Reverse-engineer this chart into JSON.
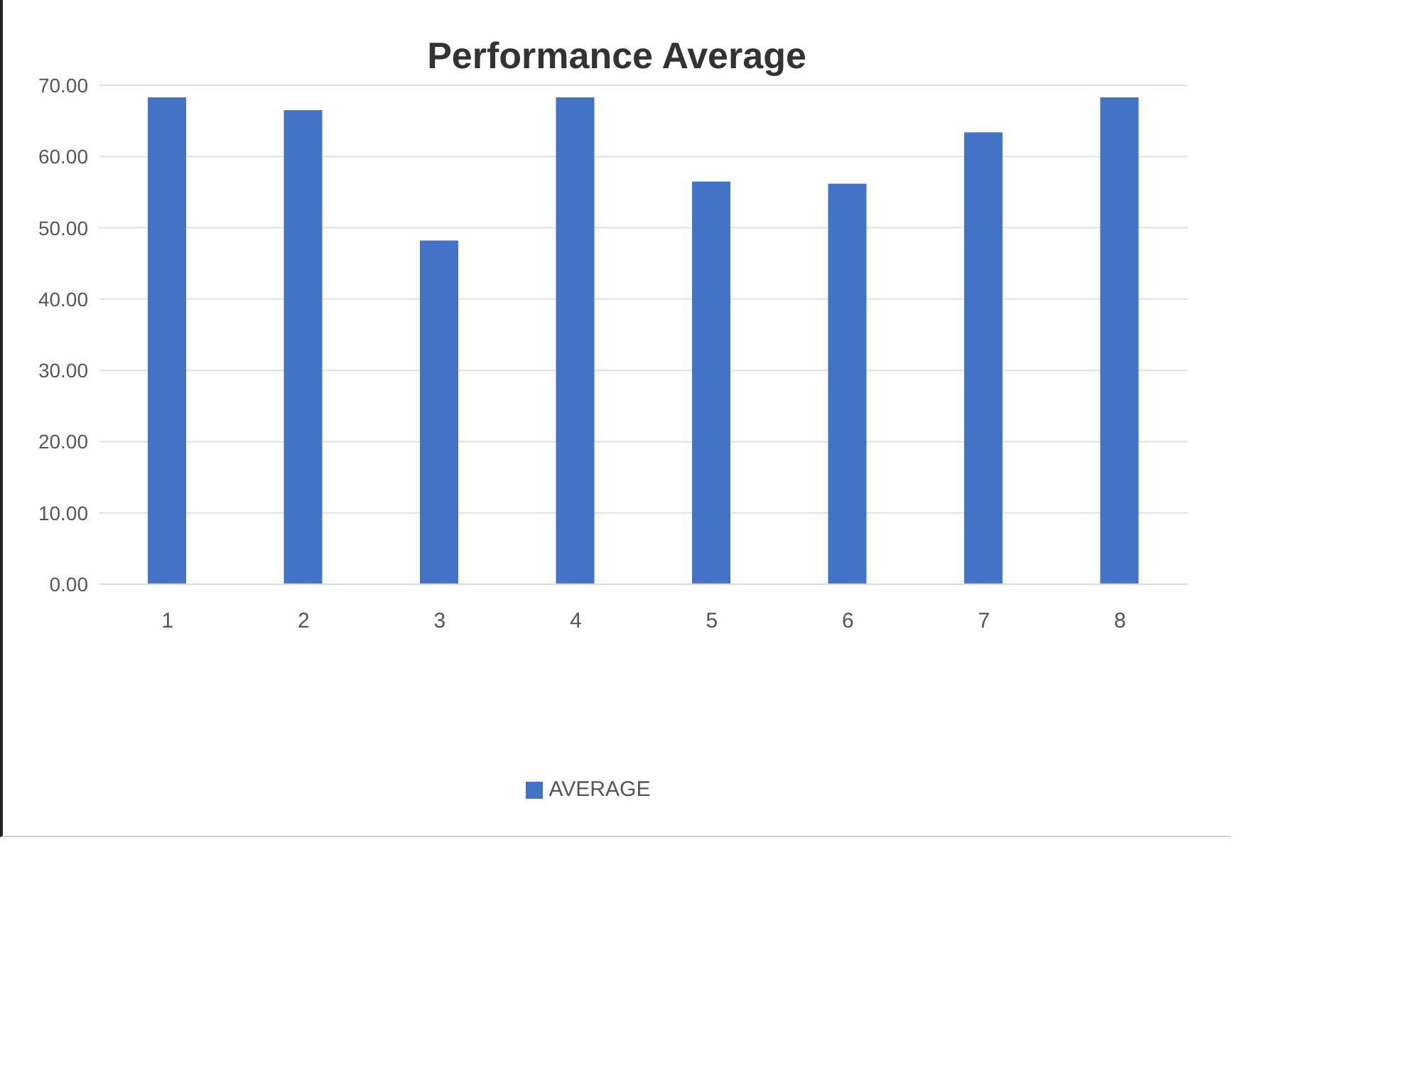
{
  "chart_data": {
    "type": "bar",
    "title": "Performance Average",
    "categories": [
      "1",
      "2",
      "3",
      "4",
      "5",
      "6",
      "7",
      "8"
    ],
    "series": [
      {
        "name": "AVERAGE",
        "color": "#4472c4",
        "values": [
          68.3,
          66.5,
          48.2,
          68.3,
          56.5,
          56.2,
          63.4,
          68.3
        ]
      }
    ],
    "ylim": [
      0,
      70
    ],
    "yticks": [
      {
        "value": 0,
        "label": "0.00"
      },
      {
        "value": 10,
        "label": "10.00"
      },
      {
        "value": 20,
        "label": "20.00"
      },
      {
        "value": 30,
        "label": "30.00"
      },
      {
        "value": 40,
        "label": "40.00"
      },
      {
        "value": 50,
        "label": "50.00"
      },
      {
        "value": 60,
        "label": "60.00"
      },
      {
        "value": 70,
        "label": "70.00"
      }
    ],
    "grid": "y",
    "legend": "bottom"
  }
}
